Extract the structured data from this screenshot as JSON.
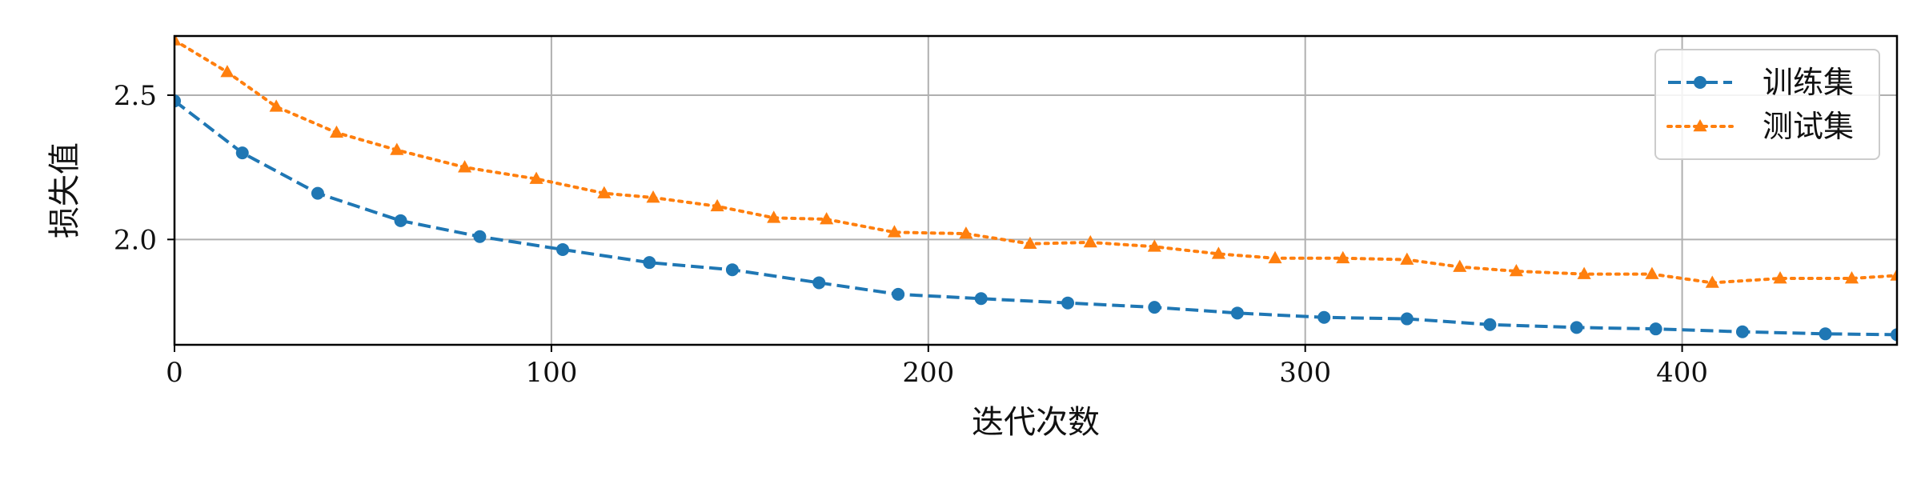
{
  "chart_data": {
    "type": "line",
    "title": "",
    "xlabel": "迭代次数",
    "ylabel": "损失值",
    "xlim": [
      0,
      457
    ],
    "ylim": [
      1.635,
      2.705
    ],
    "xticks": [
      0,
      100,
      200,
      300,
      400
    ],
    "xtick_labels": [
      "0",
      "100",
      "200",
      "300",
      "400"
    ],
    "yticks": [
      2.0,
      2.5
    ],
    "ytick_labels": [
      "2.0",
      "2.5"
    ],
    "grid": true,
    "legend_position": "top-right",
    "series": [
      {
        "name": "训练集",
        "color": "#1f77b4",
        "line_style": "dashed",
        "marker": "circle",
        "points": [
          [
            0,
            2.48
          ],
          [
            18,
            2.3
          ],
          [
            38,
            2.16
          ],
          [
            60,
            2.065
          ],
          [
            81,
            2.01
          ],
          [
            103,
            1.965
          ],
          [
            126,
            1.92
          ],
          [
            148,
            1.895
          ],
          [
            171,
            1.85
          ],
          [
            192,
            1.81
          ],
          [
            214,
            1.795
          ],
          [
            237,
            1.78
          ],
          [
            260,
            1.765
          ],
          [
            282,
            1.745
          ],
          [
            305,
            1.73
          ],
          [
            327,
            1.725
          ],
          [
            349,
            1.705
          ],
          [
            372,
            1.695
          ],
          [
            393,
            1.69
          ],
          [
            416,
            1.68
          ],
          [
            438,
            1.673
          ],
          [
            457,
            1.67
          ]
        ]
      },
      {
        "name": "测试集",
        "color": "#ff7f0e",
        "line_style": "dotted",
        "marker": "triangle",
        "points": [
          [
            0,
            2.69
          ],
          [
            14,
            2.58
          ],
          [
            27,
            2.46
          ],
          [
            43,
            2.37
          ],
          [
            59,
            2.31
          ],
          [
            77,
            2.25
          ],
          [
            96,
            2.21
          ],
          [
            114,
            2.16
          ],
          [
            127,
            2.145
          ],
          [
            144,
            2.115
          ],
          [
            159,
            2.075
          ],
          [
            173,
            2.07
          ],
          [
            191,
            2.025
          ],
          [
            210,
            2.02
          ],
          [
            227,
            1.985
          ],
          [
            243,
            1.99
          ],
          [
            260,
            1.975
          ],
          [
            277,
            1.95
          ],
          [
            292,
            1.935
          ],
          [
            310,
            1.935
          ],
          [
            327,
            1.93
          ],
          [
            341,
            1.905
          ],
          [
            356,
            1.89
          ],
          [
            374,
            1.88
          ],
          [
            392,
            1.88
          ],
          [
            408,
            1.85
          ],
          [
            426,
            1.865
          ],
          [
            445,
            1.865
          ],
          [
            457,
            1.875
          ]
        ]
      }
    ]
  }
}
